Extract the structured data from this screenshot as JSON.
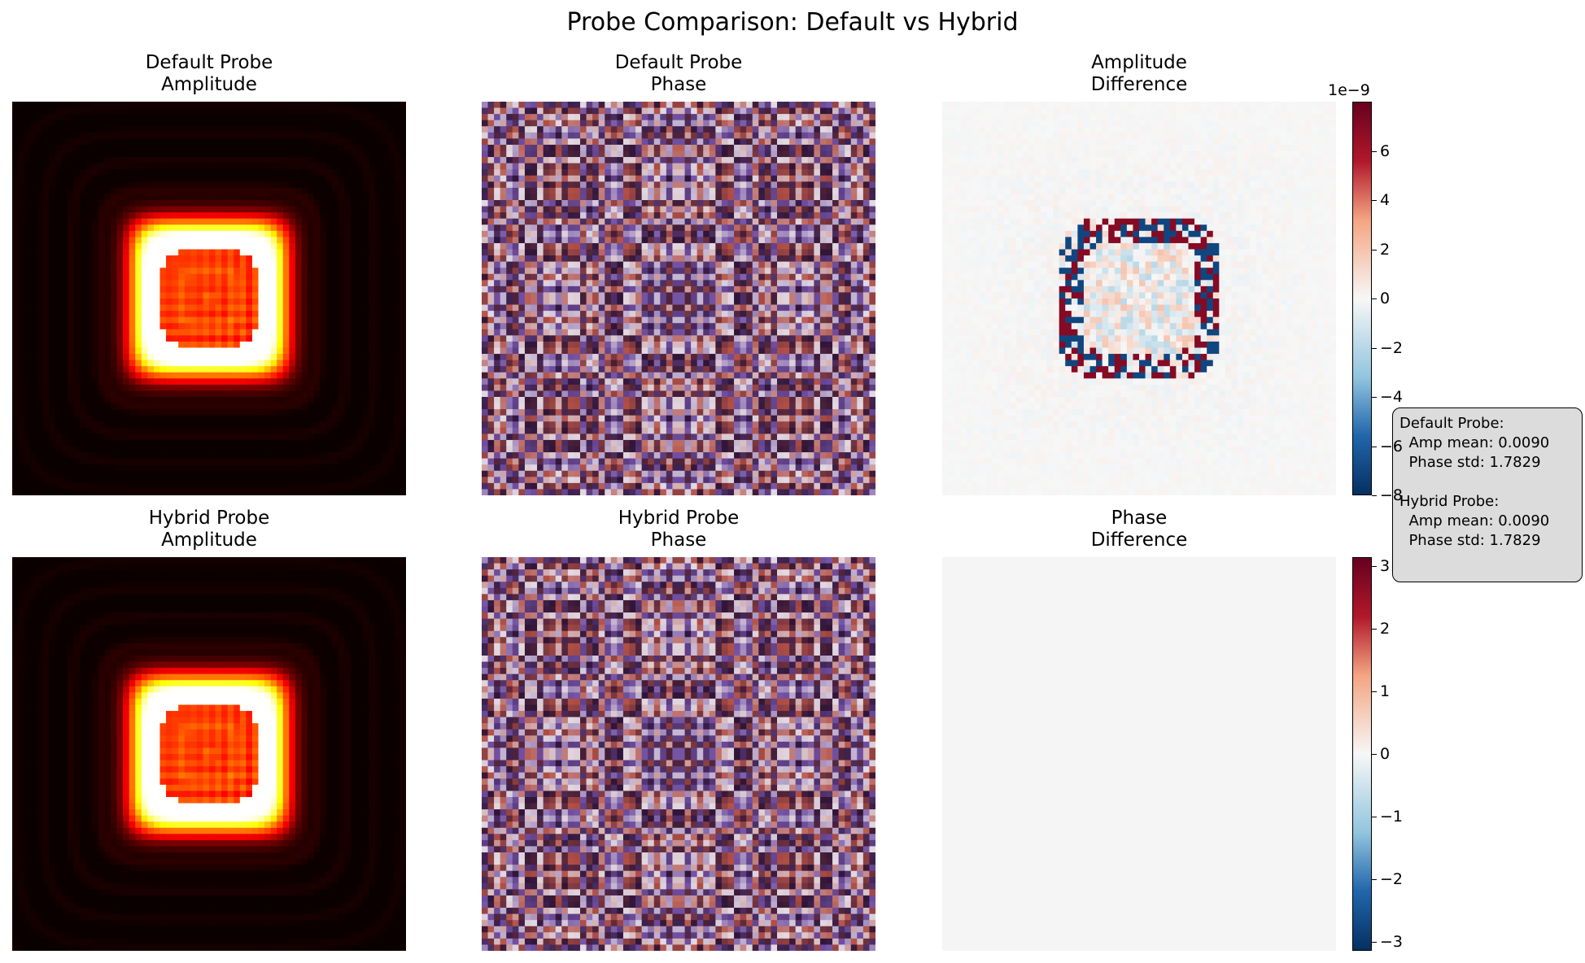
{
  "title": "Probe Comparison: Default vs Hybrid",
  "chart_data": [
    {
      "type": "heatmap",
      "title": "Default Probe\nAmplitude",
      "colormap": "hot",
      "grid": false,
      "axes": "off"
    },
    {
      "type": "heatmap",
      "title": "Default Probe\nPhase",
      "colormap": "twilight_shifted",
      "grid": false,
      "axes": "off"
    },
    {
      "type": "heatmap",
      "title": "Amplitude\nDifference",
      "colormap": "RdBu_r",
      "grid": false,
      "axes": "off",
      "colorbar": {
        "ticks": [
          6,
          4,
          2,
          0,
          -2,
          -4,
          -6,
          -8
        ],
        "tick_labels": [
          "6",
          "4",
          "2",
          "0",
          "−2",
          "−4",
          "−6",
          "−8"
        ],
        "range": [
          -8,
          8
        ],
        "offset_text": "1e−9"
      }
    },
    {
      "type": "heatmap",
      "title": "Hybrid Probe\nAmplitude",
      "colormap": "hot",
      "grid": false,
      "axes": "off"
    },
    {
      "type": "heatmap",
      "title": "Hybrid Probe\nPhase",
      "colormap": "twilight_shifted",
      "grid": false,
      "axes": "off"
    },
    {
      "type": "heatmap",
      "title": "Phase\nDifference",
      "colormap": "RdBu_r",
      "grid": false,
      "axes": "off",
      "uniform_value": 0,
      "colorbar": {
        "ticks": [
          3,
          2,
          1,
          0,
          -1,
          -2,
          -3
        ],
        "tick_labels": [
          "3",
          "2",
          "1",
          "0",
          "−1",
          "−2",
          "−3"
        ],
        "range": [
          -3.14,
          3.14
        ]
      }
    }
  ],
  "stats_box": {
    "default_header": "Default Probe:",
    "default_amp": "  Amp mean: 0.0090",
    "default_phase": "  Phase std: 1.7829",
    "hybrid_header": "Hybrid Probe:",
    "hybrid_amp": "  Amp mean: 0.0090",
    "hybrid_phase": "  Phase std: 1.7829"
  }
}
